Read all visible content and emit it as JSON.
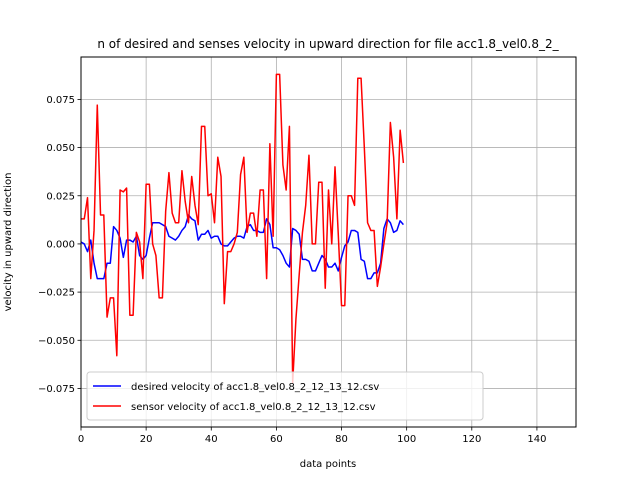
{
  "chart_data": {
    "type": "line",
    "title": "n of desired and senses velocity in upward direction for file acc1.8_vel0.8_2_",
    "xlabel": "data points",
    "ylabel": "velocity in upward direction",
    "xlim": [
      0,
      152
    ],
    "ylim": [
      -0.095,
      0.097
    ],
    "xticks": [
      0,
      20,
      40,
      60,
      80,
      100,
      120,
      140
    ],
    "yticks": [
      -0.075,
      -0.05,
      -0.025,
      0.0,
      0.025,
      0.05,
      0.075
    ],
    "ytick_labels": [
      "−0.075",
      "−0.050",
      "−0.025",
      "0.000",
      "0.025",
      "0.050",
      "0.075"
    ],
    "grid": true,
    "legend_position": "lower-left",
    "series": [
      {
        "name": "desired velocity of acc1.8_vel0.8_2_12_13_12.csv",
        "color": "#0000ff",
        "x": [
          0,
          1,
          2,
          3,
          4,
          5,
          6,
          7,
          8,
          9,
          10,
          11,
          12,
          13,
          14,
          15,
          16,
          17,
          18,
          19,
          20,
          21,
          22,
          23,
          24,
          25,
          26,
          27,
          28,
          29,
          30,
          31,
          32,
          33,
          34,
          35,
          36,
          37,
          38,
          39,
          40,
          41,
          42,
          43,
          44,
          45,
          46,
          47,
          48,
          49,
          50,
          51,
          52,
          53,
          54,
          55,
          56,
          57,
          58,
          59,
          60,
          61,
          62,
          63,
          64,
          65,
          66,
          67,
          68,
          69,
          70,
          71,
          72,
          73,
          74,
          75,
          76,
          77,
          78,
          79,
          80,
          81,
          82,
          83,
          84,
          85,
          86,
          87,
          88,
          89,
          90,
          91,
          92,
          93,
          94,
          95,
          96,
          97,
          98,
          99
        ],
        "y": [
          0.001,
          0.0,
          -0.004,
          0.002,
          -0.01,
          -0.018,
          -0.018,
          -0.018,
          -0.01,
          -0.01,
          0.009,
          0.007,
          0.003,
          -0.007,
          0.002,
          0.002,
          0.001,
          0.004,
          -0.006,
          -0.008,
          -0.006,
          0.003,
          0.011,
          0.011,
          0.011,
          0.01,
          0.009,
          0.004,
          0.003,
          0.002,
          0.004,
          0.007,
          0.009,
          0.015,
          0.013,
          0.012,
          0.002,
          0.005,
          0.005,
          0.007,
          0.003,
          0.004,
          0.004,
          0.0,
          -0.001,
          -0.001,
          0.001,
          0.003,
          0.004,
          0.004,
          0.003,
          0.009,
          0.01,
          0.007,
          0.007,
          0.006,
          0.006,
          0.013,
          0.01,
          -0.002,
          -0.002,
          -0.003,
          -0.006,
          -0.01,
          -0.012,
          0.008,
          0.007,
          0.005,
          -0.008,
          -0.008,
          -0.009,
          -0.014,
          -0.014,
          -0.01,
          -0.006,
          -0.008,
          -0.012,
          -0.012,
          -0.01,
          -0.014,
          -0.007,
          -0.001,
          0.001,
          0.007,
          0.007,
          0.006,
          -0.008,
          -0.009,
          -0.018,
          -0.018,
          -0.015,
          -0.015,
          -0.01,
          0.008,
          0.013,
          0.011,
          0.006,
          0.007,
          0.012,
          0.01
        ]
      },
      {
        "name": "sensor velocity of acc1.8_vel0.8_2_12_13_12.csv",
        "color": "#ff0000",
        "x": [
          0,
          1,
          2,
          3,
          4,
          5,
          6,
          7,
          8,
          9,
          10,
          11,
          12,
          13,
          14,
          15,
          16,
          17,
          18,
          19,
          20,
          21,
          22,
          23,
          24,
          25,
          26,
          27,
          28,
          29,
          30,
          31,
          32,
          33,
          34,
          35,
          36,
          37,
          38,
          39,
          40,
          41,
          42,
          43,
          44,
          45,
          46,
          47,
          48,
          49,
          50,
          51,
          52,
          53,
          54,
          55,
          56,
          57,
          58,
          59,
          60,
          61,
          62,
          63,
          64,
          65,
          66,
          67,
          68,
          69,
          70,
          71,
          72,
          73,
          74,
          75,
          76,
          77,
          78,
          79,
          80,
          81,
          82,
          83,
          84,
          85,
          86,
          87,
          88,
          89,
          90,
          91,
          92,
          93,
          94,
          95,
          96,
          97,
          98,
          99
        ],
        "y": [
          0.013,
          0.013,
          0.024,
          -0.018,
          0.007,
          0.072,
          0.015,
          0.015,
          -0.038,
          -0.028,
          -0.028,
          -0.058,
          0.028,
          0.027,
          0.029,
          -0.037,
          -0.037,
          0.006,
          0.001,
          -0.018,
          0.031,
          0.031,
          0.0,
          -0.006,
          -0.028,
          -0.028,
          0.017,
          0.037,
          0.016,
          0.011,
          0.011,
          0.038,
          0.022,
          0.011,
          0.035,
          0.02,
          0.01,
          0.061,
          0.061,
          0.025,
          0.026,
          0.011,
          0.045,
          0.035,
          -0.031,
          -0.004,
          -0.004,
          0.0,
          0.006,
          0.036,
          0.045,
          0.006,
          0.016,
          0.016,
          0.004,
          0.028,
          0.028,
          -0.018,
          0.052,
          0.004,
          0.088,
          0.088,
          0.041,
          0.028,
          0.061,
          -0.072,
          -0.039,
          -0.016,
          0.006,
          0.02,
          0.046,
          0.0,
          0.0,
          0.032,
          0.032,
          -0.023,
          0.028,
          0.0,
          0.04,
          0.005,
          -0.032,
          -0.032,
          0.025,
          0.025,
          0.02,
          0.086,
          0.086,
          0.05,
          0.011,
          0.007,
          0.007,
          -0.022,
          -0.012,
          0.0,
          0.011,
          0.063,
          0.045,
          0.013,
          0.059,
          0.042
        ]
      }
    ]
  }
}
